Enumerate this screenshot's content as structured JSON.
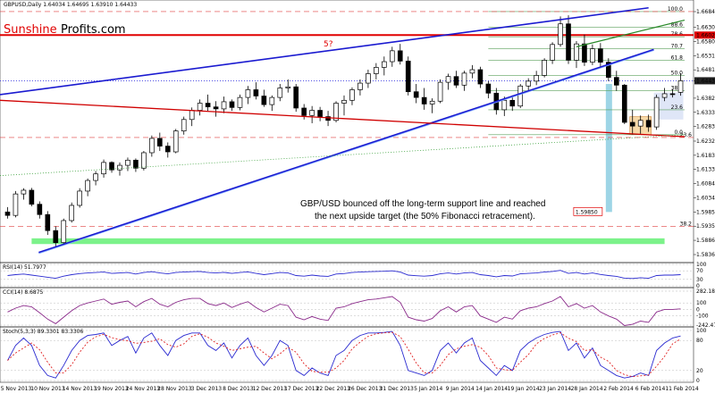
{
  "header": {
    "title_line": "GBPUSD,Daily  1.64034 1.64695 1.63910 1.64433",
    "brand_left": "Sunshine",
    "brand_right": "Profits.com"
  },
  "chart_data": {
    "type": "candlestick",
    "symbol": "GBPUSD",
    "timeframe": "Daily",
    "ohlc_readout": [
      1.64034,
      1.64695,
      1.6391,
      1.64433
    ],
    "ylim": [
      1.58363,
      1.66848
    ],
    "price_ticks": [
      "1.66848",
      "1.66300",
      "1.65805",
      "1.65310",
      "1.64815",
      "1.64433",
      "1.63825",
      "1.63330",
      "1.62835",
      "1.62325",
      "1.61830",
      "1.61335",
      "1.60840",
      "1.60345",
      "1.59850",
      "1.59355",
      "1.58860",
      "1.58363"
    ],
    "x_tick_labels": [
      "5 Nov 2013",
      "10 Nov 2013",
      "14 Nov 2013",
      "19 Nov 2013",
      "24 Nov 2013",
      "28 Nov 2013",
      "3 Dec 2013",
      "8 Dec 2013",
      "12 Dec 2013",
      "17 Dec 2013",
      "22 Dec 2013",
      "26 Dec 2013",
      "31 Dec 2013",
      "5 Jan 2014",
      "9 Jan 2014",
      "14 Jan 2014",
      "19 Jan 2014",
      "23 Jan 2014",
      "28 Jan 2014",
      "2 Feb 2014",
      "6 Feb 2014",
      "11 Feb 2014"
    ],
    "candles": [
      {
        "o": 1.5985,
        "h": 1.6002,
        "l": 1.5962,
        "c": 1.5973
      },
      {
        "o": 1.5973,
        "h": 1.6058,
        "l": 1.5966,
        "c": 1.6048
      },
      {
        "o": 1.6048,
        "h": 1.6068,
        "l": 1.6028,
        "c": 1.6061
      },
      {
        "o": 1.6061,
        "h": 1.6069,
        "l": 1.6005,
        "c": 1.6012
      },
      {
        "o": 1.6012,
        "h": 1.6022,
        "l": 1.5962,
        "c": 1.5976
      },
      {
        "o": 1.5976,
        "h": 1.5988,
        "l": 1.5905,
        "c": 1.592
      },
      {
        "o": 1.592,
        "h": 1.5935,
        "l": 1.5863,
        "c": 1.5878
      },
      {
        "o": 1.5878,
        "h": 1.5962,
        "l": 1.5872,
        "c": 1.5955
      },
      {
        "o": 1.5955,
        "h": 1.6018,
        "l": 1.5948,
        "c": 1.6008
      },
      {
        "o": 1.6008,
        "h": 1.6068,
        "l": 1.6,
        "c": 1.6058
      },
      {
        "o": 1.6058,
        "h": 1.6102,
        "l": 1.604,
        "c": 1.6095
      },
      {
        "o": 1.6095,
        "h": 1.6128,
        "l": 1.6078,
        "c": 1.6118
      },
      {
        "o": 1.6118,
        "h": 1.6168,
        "l": 1.6105,
        "c": 1.6158
      },
      {
        "o": 1.6158,
        "h": 1.6162,
        "l": 1.6122,
        "c": 1.6132
      },
      {
        "o": 1.6132,
        "h": 1.6158,
        "l": 1.6112,
        "c": 1.6148
      },
      {
        "o": 1.6148,
        "h": 1.6175,
        "l": 1.6128,
        "c": 1.6166
      },
      {
        "o": 1.6166,
        "h": 1.6172,
        "l": 1.6125,
        "c": 1.6138
      },
      {
        "o": 1.6138,
        "h": 1.6198,
        "l": 1.613,
        "c": 1.6192
      },
      {
        "o": 1.6192,
        "h": 1.6252,
        "l": 1.6178,
        "c": 1.6242
      },
      {
        "o": 1.6242,
        "h": 1.6262,
        "l": 1.6198,
        "c": 1.6215
      },
      {
        "o": 1.6215,
        "h": 1.6228,
        "l": 1.6175,
        "c": 1.6195
      },
      {
        "o": 1.6195,
        "h": 1.6275,
        "l": 1.619,
        "c": 1.6268
      },
      {
        "o": 1.6268,
        "h": 1.6318,
        "l": 1.6255,
        "c": 1.6308
      },
      {
        "o": 1.6308,
        "h": 1.635,
        "l": 1.6285,
        "c": 1.634
      },
      {
        "o": 1.634,
        "h": 1.6378,
        "l": 1.6322,
        "c": 1.6365
      },
      {
        "o": 1.6365,
        "h": 1.6395,
        "l": 1.6338,
        "c": 1.6352
      },
      {
        "o": 1.6352,
        "h": 1.6372,
        "l": 1.6318,
        "c": 1.6345
      },
      {
        "o": 1.6345,
        "h": 1.6388,
        "l": 1.633,
        "c": 1.637
      },
      {
        "o": 1.637,
        "h": 1.6378,
        "l": 1.6338,
        "c": 1.635
      },
      {
        "o": 1.635,
        "h": 1.6395,
        "l": 1.634,
        "c": 1.6385
      },
      {
        "o": 1.6385,
        "h": 1.6425,
        "l": 1.6362,
        "c": 1.6412
      },
      {
        "o": 1.6412,
        "h": 1.6438,
        "l": 1.6378,
        "c": 1.639
      },
      {
        "o": 1.639,
        "h": 1.6412,
        "l": 1.6352,
        "c": 1.636
      },
      {
        "o": 1.636,
        "h": 1.6392,
        "l": 1.6338,
        "c": 1.6385
      },
      {
        "o": 1.6385,
        "h": 1.6432,
        "l": 1.6372,
        "c": 1.6418
      },
      {
        "o": 1.6418,
        "h": 1.6448,
        "l": 1.6402,
        "c": 1.6422
      },
      {
        "o": 1.6422,
        "h": 1.6432,
        "l": 1.6335,
        "c": 1.6348
      },
      {
        "o": 1.6348,
        "h": 1.6362,
        "l": 1.6308,
        "c": 1.6322
      },
      {
        "o": 1.6322,
        "h": 1.6355,
        "l": 1.6295,
        "c": 1.634
      },
      {
        "o": 1.634,
        "h": 1.6352,
        "l": 1.6302,
        "c": 1.6318
      },
      {
        "o": 1.6318,
        "h": 1.6338,
        "l": 1.6285,
        "c": 1.6305
      },
      {
        "o": 1.6305,
        "h": 1.6372,
        "l": 1.6298,
        "c": 1.6365
      },
      {
        "o": 1.6365,
        "h": 1.6392,
        "l": 1.6322,
        "c": 1.6375
      },
      {
        "o": 1.6375,
        "h": 1.642,
        "l": 1.6358,
        "c": 1.6412
      },
      {
        "o": 1.6412,
        "h": 1.6448,
        "l": 1.6392,
        "c": 1.6435
      },
      {
        "o": 1.6435,
        "h": 1.6482,
        "l": 1.6418,
        "c": 1.6468
      },
      {
        "o": 1.6468,
        "h": 1.6505,
        "l": 1.6448,
        "c": 1.649
      },
      {
        "o": 1.649,
        "h": 1.6528,
        "l": 1.6462,
        "c": 1.651
      },
      {
        "o": 1.651,
        "h": 1.6562,
        "l": 1.6492,
        "c": 1.6548
      },
      {
        "o": 1.6548,
        "h": 1.6572,
        "l": 1.65,
        "c": 1.6512
      },
      {
        "o": 1.6512,
        "h": 1.6528,
        "l": 1.6392,
        "c": 1.6405
      },
      {
        "o": 1.6405,
        "h": 1.6432,
        "l": 1.6365,
        "c": 1.6385
      },
      {
        "o": 1.6385,
        "h": 1.6418,
        "l": 1.6342,
        "c": 1.6362
      },
      {
        "o": 1.6362,
        "h": 1.6382,
        "l": 1.633,
        "c": 1.6372
      },
      {
        "o": 1.6372,
        "h": 1.6448,
        "l": 1.6365,
        "c": 1.6438
      },
      {
        "o": 1.6438,
        "h": 1.6468,
        "l": 1.6412,
        "c": 1.6458
      },
      {
        "o": 1.6458,
        "h": 1.6478,
        "l": 1.6418,
        "c": 1.6428
      },
      {
        "o": 1.6428,
        "h": 1.6478,
        "l": 1.6408,
        "c": 1.647
      },
      {
        "o": 1.647,
        "h": 1.6498,
        "l": 1.6452,
        "c": 1.6482
      },
      {
        "o": 1.6482,
        "h": 1.6492,
        "l": 1.6418,
        "c": 1.6432
      },
      {
        "o": 1.6432,
        "h": 1.6442,
        "l": 1.6382,
        "c": 1.64
      },
      {
        "o": 1.64,
        "h": 1.6418,
        "l": 1.6325,
        "c": 1.6342
      },
      {
        "o": 1.6342,
        "h": 1.6388,
        "l": 1.632,
        "c": 1.6375
      },
      {
        "o": 1.6375,
        "h": 1.6392,
        "l": 1.6338,
        "c": 1.6355
      },
      {
        "o": 1.6355,
        "h": 1.6432,
        "l": 1.6348,
        "c": 1.6425
      },
      {
        "o": 1.6425,
        "h": 1.6452,
        "l": 1.641,
        "c": 1.6442
      },
      {
        "o": 1.6442,
        "h": 1.6478,
        "l": 1.6428,
        "c": 1.6462
      },
      {
        "o": 1.6462,
        "h": 1.6522,
        "l": 1.6455,
        "c": 1.6515
      },
      {
        "o": 1.6515,
        "h": 1.6578,
        "l": 1.6502,
        "c": 1.657
      },
      {
        "o": 1.657,
        "h": 1.6668,
        "l": 1.6562,
        "c": 1.6642
      },
      {
        "o": 1.6642,
        "h": 1.6672,
        "l": 1.6502,
        "c": 1.6515
      },
      {
        "o": 1.6515,
        "h": 1.6582,
        "l": 1.6488,
        "c": 1.6572
      },
      {
        "o": 1.6572,
        "h": 1.6605,
        "l": 1.6495,
        "c": 1.6508
      },
      {
        "o": 1.6508,
        "h": 1.657,
        "l": 1.6498,
        "c": 1.6555
      },
      {
        "o": 1.6555,
        "h": 1.6575,
        "l": 1.6492,
        "c": 1.6508
      },
      {
        "o": 1.6508,
        "h": 1.6522,
        "l": 1.6442,
        "c": 1.6455
      },
      {
        "o": 1.6455,
        "h": 1.6478,
        "l": 1.6408,
        "c": 1.6428
      },
      {
        "o": 1.6428,
        "h": 1.6432,
        "l": 1.6292,
        "c": 1.6298
      },
      {
        "o": 1.6298,
        "h": 1.6342,
        "l": 1.6255,
        "c": 1.6285
      },
      {
        "o": 1.6285,
        "h": 1.6322,
        "l": 1.6258,
        "c": 1.6305
      },
      {
        "o": 1.6305,
        "h": 1.6325,
        "l": 1.6265,
        "c": 1.6282
      },
      {
        "o": 1.6282,
        "h": 1.6395,
        "l": 1.6272,
        "c": 1.6385
      },
      {
        "o": 1.6385,
        "h": 1.6418,
        "l": 1.6372,
        "c": 1.6398
      },
      {
        "o": 1.6398,
        "h": 1.6415,
        "l": 1.6385,
        "c": 1.6395
      },
      {
        "o": 1.6403,
        "h": 1.64695,
        "l": 1.6391,
        "c": 1.64433
      }
    ],
    "fibonacci_levels": [
      {
        "label": "100.0",
        "price": 1.6685
      },
      {
        "label": "88.6",
        "price": 1.663
      },
      {
        "label": "78.6",
        "price": 1.6597
      },
      {
        "label": "70.7",
        "price": 1.6555
      },
      {
        "label": "61.8",
        "price": 1.6515
      },
      {
        "label": "50.0",
        "price": 1.6462
      },
      {
        "label": "38.2",
        "price": 1.6408
      },
      {
        "label": "23.6",
        "price": 1.6342
      },
      {
        "label": "0.0",
        "price": 1.6255
      }
    ],
    "lower_fib_levels": [
      {
        "label": "23.6",
        "price": 1.6245
      },
      {
        "label": "38.2",
        "price": 1.5935
      }
    ],
    "resistance_level": {
      "label": "1.66028",
      "price": 1.66028
    },
    "current_price_label": "1.64433",
    "target_label": "1.59850",
    "annotations": {
      "question_mark": "5?",
      "comment_line_1": "GBP/USD bounced off  the long-term support line and reached",
      "comment_line_2": "the next upside target (the 50% Fibonacci retracement)."
    },
    "indicators": {
      "rsi": {
        "label": "RSI(14) 51.7977",
        "ticks": [
          "100",
          "70",
          "30",
          "0"
        ],
        "values": [
          48,
          52,
          55,
          50,
          45,
          40,
          35,
          45,
          52,
          57,
          60,
          62,
          64,
          58,
          60,
          62,
          55,
          62,
          66,
          60,
          56,
          62,
          64,
          66,
          67,
          62,
          60,
          63,
          58,
          62,
          65,
          58,
          52,
          57,
          62,
          60,
          48,
          45,
          50,
          46,
          44,
          55,
          57,
          62,
          64,
          66,
          67,
          68,
          70,
          64,
          50,
          47,
          45,
          48,
          56,
          60,
          55,
          60,
          62,
          52,
          48,
          42,
          48,
          46,
          56,
          58,
          60,
          64,
          67,
          72,
          58,
          62,
          55,
          60,
          53,
          48,
          44,
          36,
          34,
          38,
          35,
          48,
          50,
          50,
          52
        ]
      },
      "cci": {
        "label": "CCI(14) 8.6875",
        "ticks": [
          "282.1846",
          "100",
          "0",
          "-100",
          "-242.4736"
        ],
        "values": [
          -40,
          20,
          60,
          40,
          -50,
          -150,
          -220,
          -120,
          -20,
          60,
          100,
          130,
          160,
          80,
          110,
          130,
          40,
          120,
          170,
          80,
          40,
          110,
          150,
          170,
          170,
          90,
          60,
          100,
          30,
          80,
          120,
          30,
          -40,
          20,
          80,
          60,
          -120,
          -160,
          -110,
          -150,
          -170,
          20,
          40,
          90,
          120,
          150,
          160,
          180,
          200,
          110,
          -120,
          -160,
          -180,
          -140,
          -20,
          40,
          -40,
          40,
          60,
          -100,
          -150,
          -200,
          -120,
          -150,
          -20,
          20,
          40,
          90,
          130,
          200,
          40,
          90,
          20,
          60,
          -40,
          -100,
          -150,
          -250,
          -230,
          -180,
          -200,
          -40,
          0,
          0,
          9
        ]
      },
      "stochastic": {
        "label": "Stoch(5,3,3) 89.3301 83.3306",
        "ticks": [
          "100",
          "80",
          "20",
          "0"
        ],
        "k": [
          40,
          70,
          85,
          70,
          30,
          10,
          5,
          30,
          60,
          80,
          90,
          92,
          95,
          70,
          80,
          88,
          55,
          85,
          95,
          70,
          50,
          80,
          90,
          95,
          95,
          70,
          60,
          75,
          45,
          70,
          85,
          50,
          30,
          50,
          80,
          70,
          20,
          10,
          25,
          15,
          10,
          50,
          60,
          80,
          90,
          95,
          95,
          96,
          98,
          70,
          20,
          15,
          10,
          20,
          60,
          75,
          55,
          75,
          85,
          40,
          25,
          10,
          30,
          20,
          60,
          75,
          85,
          92,
          96,
          98,
          60,
          75,
          45,
          65,
          30,
          20,
          10,
          5,
          8,
          15,
          10,
          60,
          75,
          85,
          89
        ]
      }
    }
  }
}
